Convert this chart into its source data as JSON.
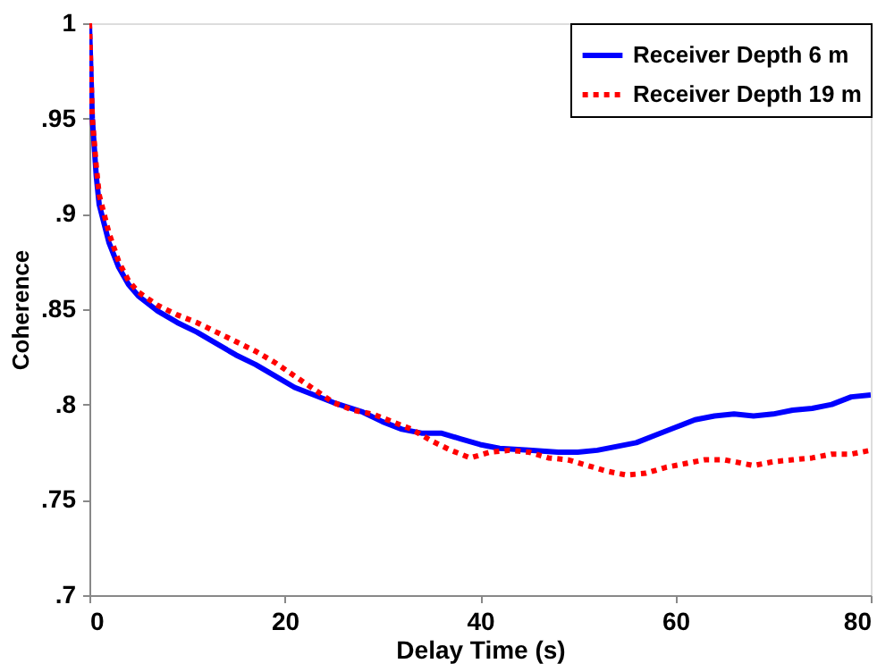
{
  "chart_data": {
    "type": "line",
    "xlabel": "Delay Time (s)",
    "ylabel": "Coherence",
    "xlim": [
      0,
      80
    ],
    "xticks": [
      0,
      20,
      40,
      60,
      80
    ],
    "ylim": [
      0.7,
      1
    ],
    "yticks": [
      {
        "value": 0.7,
        "label": ".7"
      },
      {
        "value": 0.75,
        "label": ".75"
      },
      {
        "value": 0.8,
        "label": ".8"
      },
      {
        "value": 0.85,
        "label": ".85"
      },
      {
        "value": 0.9,
        "label": ".9"
      },
      {
        "value": 0.95,
        "label": ".95"
      },
      1
    ],
    "grid": false,
    "legend": "top right",
    "marker": "none",
    "series": [
      {
        "name": "Receiver Depth 6 m",
        "color": "#0000ff",
        "line_style": "solid",
        "x": [
          0,
          0.3,
          0.7,
          1,
          2,
          3,
          4,
          5,
          7,
          9,
          11,
          13,
          15,
          17,
          19,
          21,
          23,
          25,
          28,
          30,
          32,
          34,
          36,
          38,
          40,
          42,
          45,
          48,
          50,
          52,
          54,
          56,
          58,
          60,
          62,
          64,
          66,
          68,
          70,
          72,
          74,
          76,
          78,
          80
        ],
        "values": [
          1,
          0.95,
          0.92,
          0.905,
          0.885,
          0.872,
          0.863,
          0.857,
          0.849,
          0.843,
          0.838,
          0.832,
          0.826,
          0.821,
          0.815,
          0.809,
          0.805,
          0.801,
          0.796,
          0.791,
          0.787,
          0.785,
          0.785,
          0.782,
          0.779,
          0.777,
          0.776,
          0.775,
          0.775,
          0.776,
          0.778,
          0.78,
          0.784,
          0.788,
          0.792,
          0.794,
          0.795,
          0.794,
          0.795,
          0.797,
          0.798,
          0.8,
          0.804,
          0.805
        ]
      },
      {
        "name": "Receiver Depth 19 m",
        "color": "#ff0000",
        "line_style": "dotted",
        "x": [
          0,
          0.3,
          0.7,
          1,
          2,
          3,
          4,
          5,
          7,
          9,
          11,
          13,
          15,
          17,
          19,
          21,
          23,
          25,
          27,
          29,
          31,
          33,
          35,
          37,
          39,
          41,
          43,
          45,
          47,
          49,
          51,
          53,
          55,
          57,
          59,
          61,
          63,
          65,
          67,
          68,
          70,
          72,
          74,
          76,
          78,
          80
        ],
        "values": [
          1,
          0.95,
          0.925,
          0.91,
          0.89,
          0.875,
          0.865,
          0.859,
          0.852,
          0.847,
          0.843,
          0.838,
          0.833,
          0.828,
          0.822,
          0.815,
          0.808,
          0.801,
          0.797,
          0.795,
          0.791,
          0.787,
          0.781,
          0.776,
          0.772,
          0.775,
          0.776,
          0.775,
          0.772,
          0.771,
          0.768,
          0.765,
          0.763,
          0.764,
          0.767,
          0.769,
          0.771,
          0.771,
          0.769,
          0.768,
          0.77,
          0.771,
          0.772,
          0.774,
          0.774,
          0.776
        ]
      }
    ]
  }
}
